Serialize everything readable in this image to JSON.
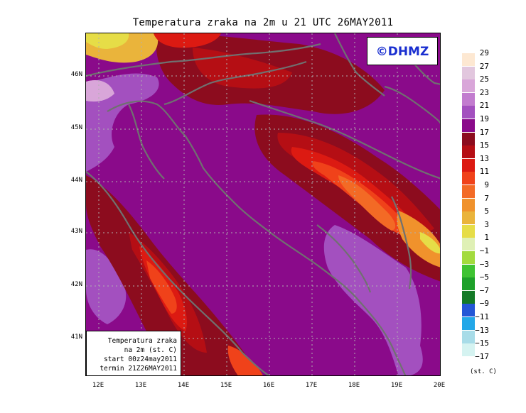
{
  "title": "Temperatura zraka na 2m u 21 UTC 26MAY2011",
  "logo_text": "©DHMZ",
  "info_box": [
    "Temperatura zraka",
    "na 2m (st. C)",
    "start 00z24may2011",
    "termin 21Z26MAY2011"
  ],
  "lat_labels": [
    "46N",
    "45N",
    "44N",
    "43N",
    "42N",
    "41N"
  ],
  "lon_labels": [
    "12E",
    "13E",
    "14E",
    "15E",
    "16E",
    "17E",
    "18E",
    "19E",
    "20E"
  ],
  "colorbar": {
    "unit": "(st. C)",
    "labels": [
      "29",
      "27",
      "25",
      "23",
      "21",
      "19",
      "17",
      "15",
      "13",
      "11",
      "9",
      "7",
      "5",
      "3",
      "1",
      "−1",
      "−3",
      "−5",
      "−7",
      "−9",
      "−11",
      "−13",
      "−15",
      "−17"
    ],
    "colors": [
      "#fde8d2",
      "#e2c7de",
      "#d9a6d9",
      "#c27ccf",
      "#a350bf",
      "#8a0a8a",
      "#8c0c1e",
      "#b50e14",
      "#dc1a12",
      "#f0421a",
      "#f36a25",
      "#f0922c",
      "#eab43b",
      "#e6dd47",
      "#dff0b5",
      "#a3db3e",
      "#3fc333",
      "#1ea12a",
      "#137a26",
      "#2356d6",
      "#22a7e8",
      "#a8dce8",
      "#d5f3f1",
      "#ffffff"
    ]
  }
}
